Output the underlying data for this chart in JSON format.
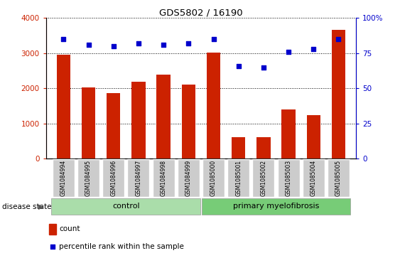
{
  "title": "GDS5802 / 16190",
  "samples": [
    "GSM1084994",
    "GSM1084995",
    "GSM1084996",
    "GSM1084997",
    "GSM1084998",
    "GSM1084999",
    "GSM1085000",
    "GSM1085001",
    "GSM1085002",
    "GSM1085003",
    "GSM1085004",
    "GSM1085005"
  ],
  "counts": [
    2950,
    2020,
    1870,
    2180,
    2400,
    2100,
    3010,
    610,
    610,
    1400,
    1230,
    3660
  ],
  "percentile_ranks": [
    85,
    81,
    80,
    82,
    81,
    82,
    85,
    66,
    65,
    76,
    78,
    85
  ],
  "control_samples": 6,
  "disease_samples": 6,
  "group_labels": [
    "control",
    "primary myelofibrosis"
  ],
  "bar_color": "#cc2200",
  "dot_color": "#0000cc",
  "left_ylim": [
    0,
    4000
  ],
  "right_ylim": [
    0,
    100
  ],
  "left_yticks": [
    0,
    1000,
    2000,
    3000,
    4000
  ],
  "right_yticks": [
    0,
    25,
    50,
    75,
    100
  ],
  "left_yticklabels": [
    "0",
    "1000",
    "2000",
    "3000",
    "4000"
  ],
  "right_yticklabels": [
    "0",
    "25",
    "50",
    "75",
    "100%"
  ],
  "left_tick_color": "#cc2200",
  "right_tick_color": "#0000cc",
  "grid_color": "black",
  "bg_color": "#cccccc",
  "control_color": "#aaddaa",
  "disease_color": "#77cc77",
  "legend_count_color": "#cc2200",
  "legend_dot_color": "#0000cc",
  "legend_count_label": "count",
  "legend_dot_label": "percentile rank within the sample",
  "disease_state_label": "disease state",
  "bar_width": 0.55
}
